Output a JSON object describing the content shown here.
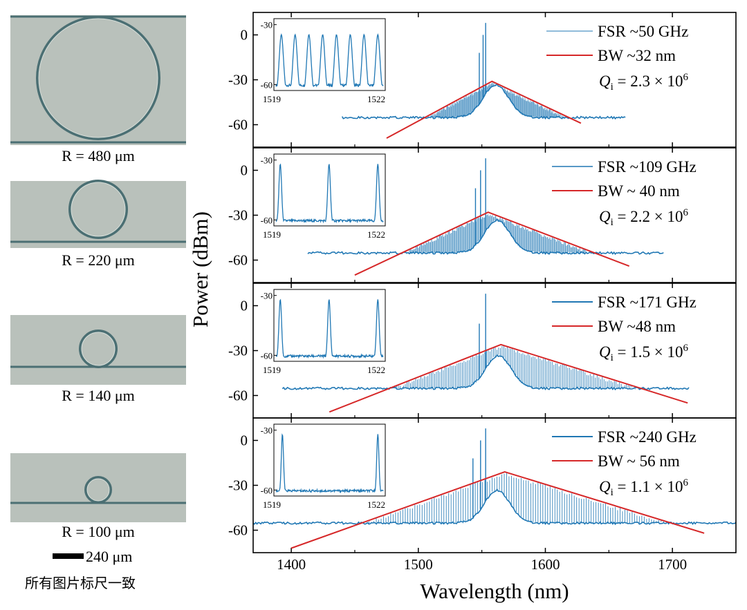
{
  "photos": [
    {
      "label": "R = 480 μm",
      "radius_um": 480
    },
    {
      "label": "R = 220 μm",
      "radius_um": 220
    },
    {
      "label": "R = 140 μm",
      "radius_um": 140
    },
    {
      "label": "R = 100 μm",
      "radius_um": 100
    }
  ],
  "scale_bar": {
    "label": "240 μm",
    "length_um": 240
  },
  "note": "所有图片标尺一致",
  "colors": {
    "spectrum": "#1f77b4",
    "envelope": "#d62728",
    "photo_bg": "#b9c1bb",
    "ring": "#4b6f73"
  },
  "chart_data": [
    {
      "type": "line",
      "panel": 1,
      "xlabel": "Wavelength (nm)",
      "ylabel": "Power (dBm)",
      "xlim": [
        1370,
        1750
      ],
      "ylim": [
        -75,
        15
      ],
      "xticks": [
        "1400",
        "1500",
        "1600",
        "1700"
      ],
      "yticks": [
        "0",
        "-30",
        "-60"
      ],
      "legend": [
        {
          "label": "FSR ~50 GHz",
          "color": "#1f77b4"
        },
        {
          "label": "BW ~32 nm",
          "color": "#d62728"
        },
        {
          "label": "Q_i = 2.3 × 10^6"
        }
      ],
      "legend_text": {
        "fsr": "FSR ~50 GHz",
        "bw": "BW ~32 nm",
        "q_symbol": "Q",
        "q_subscript": "i",
        "q_value": " =  2.3 × 10",
        "q_exponent": "6"
      },
      "fsr_ghz": 50,
      "bw_nm": 32,
      "qi": 2300000,
      "spectrum": {
        "start": 1440,
        "end": 1663,
        "center": 1561,
        "peak_dbm": -32,
        "floor_dbm": -68,
        "comb_spacing_nm": 0.4,
        "spikes": [
          1548,
          1551,
          1553
        ]
      },
      "envelope": {
        "x": [
          1475,
          1558,
          1628
        ],
        "y": [
          -69,
          -31,
          -59
        ]
      },
      "inset": {
        "xlim": [
          1519,
          1522
        ],
        "ylim": [
          -63,
          -27
        ],
        "xticks": [
          "1519",
          "1522"
        ],
        "yticks": [
          "-30",
          "-60"
        ],
        "peak_count": 8
      }
    },
    {
      "type": "line",
      "panel": 2,
      "xlabel": "Wavelength (nm)",
      "ylabel": "Power (dBm)",
      "xlim": [
        1370,
        1750
      ],
      "ylim": [
        -75,
        15
      ],
      "xticks": [
        "1400",
        "1500",
        "1600",
        "1700"
      ],
      "yticks": [
        "0",
        "-30",
        "-60"
      ],
      "legend": [
        {
          "label": "FSR ~109 GHz",
          "color": "#1f77b4"
        },
        {
          "label": "BW ~ 40 nm",
          "color": "#d62728"
        },
        {
          "label": "Q_i = 2.2 × 10^6"
        }
      ],
      "legend_text": {
        "fsr": "FSR ~109 GHz",
        "bw": "BW ~ 40 nm",
        "q_symbol": "Q",
        "q_subscript": "i",
        "q_value": " =  2.2 × 10",
        "q_exponent": "6"
      },
      "fsr_ghz": 109,
      "bw_nm": 40,
      "qi": 2200000,
      "spectrum": {
        "start": 1413,
        "end": 1693,
        "center": 1562,
        "peak_dbm": -29,
        "floor_dbm": -70,
        "comb_spacing_nm": 0.87,
        "spikes": [
          1545,
          1549,
          1553
        ]
      },
      "envelope": {
        "x": [
          1450,
          1555,
          1666
        ],
        "y": [
          -70,
          -28,
          -64
        ]
      },
      "inset": {
        "xlim": [
          1519,
          1522
        ],
        "ylim": [
          -63,
          -27
        ],
        "xticks": [
          "1519",
          "1522"
        ],
        "yticks": [
          "-30",
          "-60"
        ],
        "peak_count": 3
      }
    },
    {
      "type": "line",
      "panel": 3,
      "xlabel": "Wavelength (nm)",
      "ylabel": "Power (dBm)",
      "xlim": [
        1370,
        1750
      ],
      "ylim": [
        -75,
        15
      ],
      "xticks": [
        "1400",
        "1500",
        "1600",
        "1700"
      ],
      "yticks": [
        "0",
        "-30",
        "-60"
      ],
      "legend": [
        {
          "label": "FSR ~171 GHz",
          "color": "#1f77b4"
        },
        {
          "label": "BW ~48 nm",
          "color": "#d62728"
        },
        {
          "label": "Q_i = 1.5 × 10^6"
        }
      ],
      "legend_text": {
        "fsr": "FSR ~171 GHz",
        "bw": "BW ~48 nm",
        "q_symbol": "Q",
        "q_subscript": "i",
        "q_value": " =  1.5 × 10",
        "q_exponent": "6"
      },
      "fsr_ghz": 171,
      "bw_nm": 48,
      "qi": 1500000,
      "spectrum": {
        "start": 1393,
        "end": 1713,
        "center": 1563,
        "peak_dbm": -27,
        "floor_dbm": -72,
        "comb_spacing_nm": 1.36,
        "spikes": [
          1548,
          1553
        ]
      },
      "envelope": {
        "x": [
          1430,
          1565,
          1712
        ],
        "y": [
          -71,
          -26,
          -65
        ]
      },
      "inset": {
        "xlim": [
          1519,
          1522
        ],
        "ylim": [
          -63,
          -27
        ],
        "xticks": [
          "1519",
          "1522"
        ],
        "yticks": [
          "-30",
          "-60"
        ],
        "peak_count": 3
      }
    },
    {
      "type": "line",
      "panel": 4,
      "xlabel": "Wavelength (nm)",
      "ylabel": "Power (dBm)",
      "xlim": [
        1370,
        1750
      ],
      "ylim": [
        -75,
        15
      ],
      "xticks": [
        "1400",
        "1500",
        "1600",
        "1700"
      ],
      "yticks": [
        "0",
        "-30",
        "-60"
      ],
      "legend": [
        {
          "label": "FSR ~240 GHz",
          "color": "#1f77b4"
        },
        {
          "label": "BW ~ 56 nm",
          "color": "#d62728"
        },
        {
          "label": "Q_i = 1.1 × 10^6"
        }
      ],
      "legend_text": {
        "fsr": "FSR ~240 GHz",
        "bw": "BW ~ 56 nm",
        "q_symbol": "Q",
        "q_subscript": "i",
        "q_value": " =  1.1 × 10",
        "q_exponent": "6"
      },
      "fsr_ghz": 240,
      "bw_nm": 56,
      "qi": 1100000,
      "spectrum": {
        "start": 1370,
        "end": 1750,
        "center": 1562,
        "peak_dbm": -21,
        "floor_dbm": -71,
        "comb_spacing_nm": 1.9,
        "spikes": [
          1543,
          1549,
          1553
        ]
      },
      "envelope": {
        "x": [
          1400,
          1568,
          1725
        ],
        "y": [
          -72,
          -21,
          -62
        ]
      },
      "inset": {
        "xlim": [
          1519,
          1522
        ],
        "ylim": [
          -63,
          -27
        ],
        "xticks": [
          "1519",
          "1522"
        ],
        "yticks": [
          "-30",
          "-60"
        ],
        "peak_count": 2
      }
    }
  ]
}
